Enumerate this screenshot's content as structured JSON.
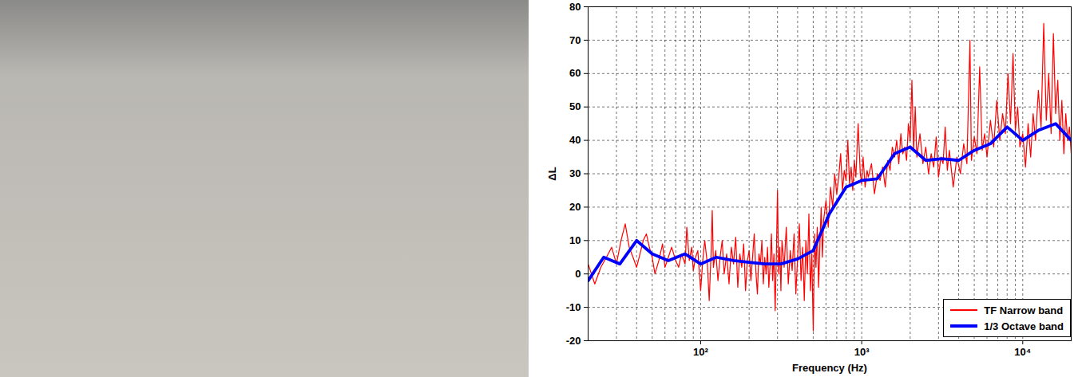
{
  "chart_data": {
    "type": "line",
    "x_label": "Frequency (Hz)",
    "y_label": "ΔL",
    "log": "x",
    "grid": true,
    "legend": "lower right",
    "xlim": [
      20,
      20000
    ],
    "ylim": [
      -20,
      80
    ],
    "xticks": [
      {
        "value": 100,
        "label": "10²"
      },
      {
        "value": 1000,
        "label": "10³"
      },
      {
        "value": 10000,
        "label": "10⁴"
      }
    ],
    "yticks": [
      -20,
      -10,
      0,
      10,
      20,
      30,
      40,
      50,
      60,
      70,
      80
    ],
    "series": [
      {
        "name": "TF Narrow band",
        "color": "#ff0000",
        "x": [
          20,
          22,
          24,
          26,
          28,
          30,
          32,
          34,
          36,
          38,
          40,
          42,
          44,
          46,
          48,
          50,
          52,
          55,
          58,
          60,
          63,
          66,
          70,
          73,
          76,
          80,
          82,
          85,
          88,
          90,
          93,
          96,
          100,
          103,
          106,
          110,
          113,
          116,
          118,
          120,
          124,
          128,
          132,
          136,
          140,
          145,
          150,
          155,
          160,
          165,
          170,
          175,
          180,
          185,
          190,
          195,
          200,
          205,
          210,
          215,
          220,
          225,
          230,
          235,
          240,
          245,
          250,
          255,
          260,
          265,
          270,
          275,
          280,
          285,
          290,
          295,
          300,
          305,
          310,
          315,
          320,
          330,
          340,
          350,
          360,
          370,
          380,
          390,
          400,
          410,
          420,
          430,
          440,
          450,
          460,
          470,
          480,
          490,
          500,
          510,
          520,
          530,
          540,
          550,
          560,
          570,
          580,
          600,
          620,
          640,
          660,
          680,
          700,
          720,
          740,
          760,
          780,
          800,
          820,
          840,
          860,
          880,
          900,
          920,
          950,
          980,
          1000,
          1020,
          1050,
          1080,
          1100,
          1150,
          1200,
          1250,
          1300,
          1350,
          1400,
          1450,
          1500,
          1550,
          1600,
          1650,
          1700,
          1750,
          1800,
          1850,
          1900,
          1950,
          2000,
          2050,
          2100,
          2150,
          2200,
          2300,
          2400,
          2500,
          2600,
          2700,
          2800,
          2900,
          3000,
          3100,
          3200,
          3300,
          3400,
          3500,
          3700,
          3900,
          4100,
          4300,
          4500,
          4700,
          4800,
          5000,
          5200,
          5400,
          5600,
          5800,
          6000,
          6300,
          6600,
          6900,
          7200,
          7500,
          7800,
          8100,
          8400,
          8700,
          9000,
          9300,
          9600,
          10000,
          10400,
          10800,
          11200,
          11600,
          12000,
          12500,
          13000,
          13500,
          14000,
          14500,
          15000,
          15500,
          16000,
          16500,
          17000,
          17500,
          18000,
          18500,
          19000,
          19500,
          20000
        ],
        "values": [
          3,
          -3,
          2,
          5,
          8,
          3,
          10,
          15,
          8,
          5,
          2,
          6,
          10,
          12,
          8,
          5,
          0,
          4,
          9,
          2,
          5,
          8,
          4,
          2,
          6,
          3,
          14,
          4,
          8,
          1,
          5,
          7,
          -5,
          4,
          10,
          3,
          -8,
          6,
          19,
          2,
          7,
          -2,
          5,
          10,
          0,
          6,
          -3,
          8,
          3,
          11,
          -4,
          6,
          2,
          9,
          -5,
          4,
          7,
          -2,
          5,
          12,
          1,
          -6,
          6,
          3,
          10,
          -3,
          5,
          0,
          8,
          -4,
          3,
          12,
          -2,
          6,
          -11,
          5,
          25,
          0,
          8,
          -5,
          10,
          2,
          14,
          -3,
          7,
          1,
          12,
          -6,
          5,
          15,
          -2,
          8,
          -8,
          10,
          0,
          18,
          -5,
          6,
          -17,
          12,
          2,
          14,
          -4,
          9,
          20,
          5,
          16,
          22,
          14,
          26,
          20,
          30,
          24,
          29,
          36,
          25,
          31,
          28,
          40,
          27,
          32,
          25,
          34,
          29,
          45,
          30,
          27,
          35,
          26,
          31,
          29,
          33,
          24,
          30,
          28,
          32,
          26,
          34,
          31,
          38,
          35,
          40,
          33,
          42,
          36,
          38,
          34,
          45,
          40,
          58,
          37,
          50,
          35,
          42,
          33,
          38,
          30,
          36,
          32,
          41,
          29,
          35,
          33,
          44,
          31,
          37,
          26,
          35,
          30,
          39,
          33,
          70,
          34,
          41,
          36,
          62,
          37,
          42,
          35,
          46,
          38,
          52,
          40,
          48,
          42,
          60,
          45,
          66,
          43,
          50,
          38,
          42,
          32,
          45,
          35,
          48,
          40,
          55,
          44,
          75,
          46,
          60,
          42,
          72,
          48,
          58,
          40,
          52,
          36,
          48,
          40,
          44,
          36
        ]
      },
      {
        "name": "1/3 Octave band",
        "color": "#0000ff",
        "x": [
          20,
          25,
          31.5,
          40,
          50,
          63,
          80,
          100,
          125,
          160,
          200,
          250,
          315,
          400,
          500,
          630,
          800,
          1000,
          1250,
          1600,
          2000,
          2500,
          3150,
          4000,
          5000,
          6300,
          8000,
          10000,
          12500,
          16000,
          20000
        ],
        "values": [
          -2,
          5,
          3,
          10,
          6,
          4,
          6,
          3,
          5,
          4,
          3.5,
          3,
          3,
          4.5,
          7,
          18,
          26,
          28,
          28.5,
          36,
          38,
          34,
          34.5,
          34,
          37,
          39,
          44,
          40,
          43,
          45,
          40
        ]
      }
    ]
  }
}
